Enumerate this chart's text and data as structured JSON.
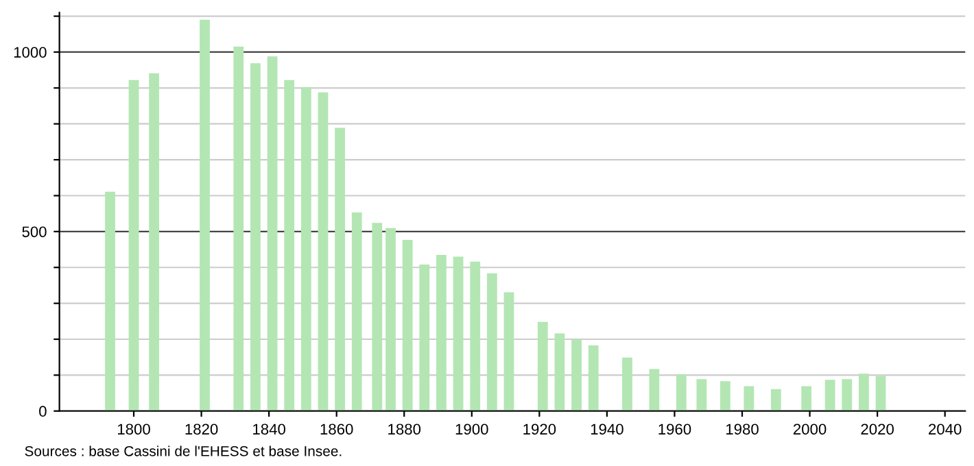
{
  "chart_data": {
    "type": "bar",
    "x": [
      1793,
      1800,
      1806,
      1821,
      1831,
      1836,
      1841,
      1846,
      1851,
      1856,
      1861,
      1866,
      1872,
      1876,
      1881,
      1886,
      1891,
      1896,
      1901,
      1906,
      1911,
      1921,
      1926,
      1931,
      1936,
      1946,
      1954,
      1962,
      1968,
      1975,
      1982,
      1990,
      1999,
      2006,
      2011,
      2016,
      2021
    ],
    "values": [
      611,
      922,
      941,
      1090,
      1015,
      969,
      988,
      922,
      902,
      888,
      789,
      553,
      524,
      510,
      477,
      408,
      435,
      430,
      416,
      384,
      331,
      248,
      216,
      200,
      183,
      149,
      117,
      102,
      89,
      83,
      69,
      61,
      69,
      87,
      89,
      104,
      98
    ],
    "color": "#b3e6b3",
    "xlim": [
      1778,
      2046
    ],
    "xticks": [
      1800,
      1820,
      1840,
      1860,
      1880,
      1900,
      1920,
      1940,
      1960,
      1980,
      2000,
      2020,
      2040
    ],
    "ylim": [
      0,
      1110
    ],
    "yticks": [
      0,
      {
        "value": 100,
        "label": null
      },
      {
        "value": 200,
        "label": null
      },
      {
        "value": 300,
        "label": null
      },
      {
        "value": 400,
        "label": null
      },
      500,
      {
        "value": 600,
        "label": null
      },
      {
        "value": 700,
        "label": null
      },
      {
        "value": 800,
        "label": null
      },
      {
        "value": 900,
        "label": null
      },
      1000,
      {
        "value": 1100,
        "label": null
      }
    ],
    "grid": "y",
    "annotations": [
      "Sources : base Cassini de l'EHESS et base Insee."
    ]
  }
}
